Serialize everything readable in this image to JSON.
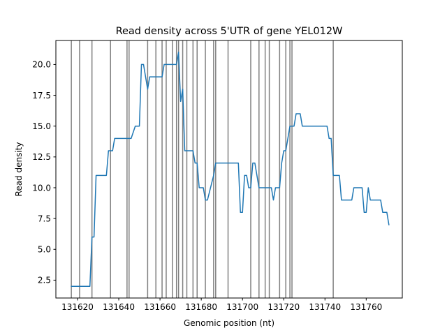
{
  "chart_data": {
    "type": "line",
    "title": "Read density across 5'UTR of gene YEL012W",
    "xlabel": "Genomic position (nt)",
    "ylabel": "Read density",
    "xlim": [
      131609.5,
      131777.5
    ],
    "ylim": [
      1.05,
      21.95
    ],
    "xticks": [
      131620,
      131640,
      131660,
      131680,
      131700,
      131720,
      131740,
      131760
    ],
    "yticks": [
      2.5,
      5.0,
      7.5,
      10.0,
      12.5,
      15.0,
      17.5,
      20.0
    ],
    "grid": false,
    "line_color": "#1f77b4",
    "vline_color": "#808080",
    "vlines": [
      131617,
      131621,
      131627,
      131636,
      131644,
      131645,
      131654,
      131658,
      131661,
      131663,
      131666,
      131668,
      131669,
      131671,
      131673,
      131676,
      131678,
      131682,
      131686,
      131687,
      131693,
      131704,
      131708,
      131711,
      131713,
      131718,
      131721,
      131723,
      131724,
      131744
    ],
    "series": [
      {
        "x": [
          131617,
          131626,
          131627,
          131628,
          131629,
          131634,
          131635,
          131637,
          131638,
          131645,
          131646,
          131648,
          131649,
          131650,
          131651,
          131652,
          131653,
          131654,
          131655,
          131661,
          131662,
          131667,
          131668,
          131669,
          131670,
          131671,
          131672,
          131676,
          131677,
          131678,
          131679,
          131680,
          131681,
          131682,
          131683,
          131686,
          131687,
          131692,
          131698,
          131699,
          131700,
          131701,
          131702,
          131703,
          131704,
          131705,
          131706,
          131707,
          131708,
          131713,
          131714,
          131715,
          131716,
          131717,
          131718,
          131719,
          131720,
          131721,
          131722,
          131723,
          131724,
          131725,
          131726,
          131727,
          131728,
          131729,
          131731,
          131736,
          131741,
          131742,
          131743,
          131744,
          131745,
          131746,
          131747,
          131748,
          131753,
          131754,
          131757,
          131758,
          131759,
          131760,
          131761,
          131762,
          131763,
          131764,
          131765,
          131767,
          131768,
          131769,
          131770,
          131771
        ],
        "y": [
          2,
          2,
          6,
          6,
          11,
          11,
          13,
          13,
          14,
          14,
          14,
          15,
          15,
          15,
          20,
          20,
          19,
          18,
          19,
          19,
          20,
          20,
          20,
          21,
          17,
          18,
          13,
          13,
          12,
          12,
          10,
          10,
          10,
          9,
          9,
          11,
          12,
          12,
          12,
          8,
          8,
          11,
          11,
          10,
          10,
          12,
          12,
          11,
          10,
          10,
          10,
          9,
          10,
          10,
          10,
          12,
          13,
          13,
          14,
          15,
          15,
          15,
          16,
          16,
          16,
          15,
          15,
          15,
          15,
          14,
          14,
          11,
          11,
          11,
          11,
          9,
          9,
          10,
          10,
          10,
          8,
          8,
          10,
          9,
          9,
          9,
          9,
          9,
          8,
          8,
          8,
          7
        ]
      }
    ]
  }
}
